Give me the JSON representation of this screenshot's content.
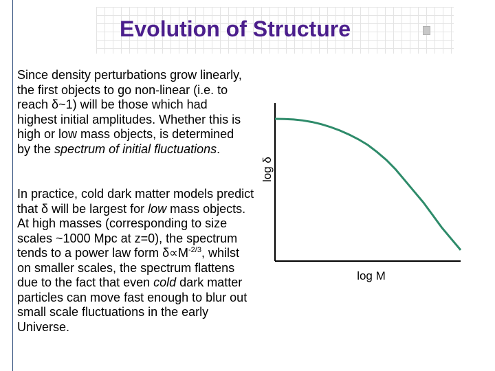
{
  "slide": {
    "title": "Evolution of Structure",
    "para1": {
      "text1": "Since density perturbations grow linearly, the first objects to go non-linear (i.e. to reach ",
      "delta": "δ",
      "text2": "~1) will be those which had highest initial amplitudes. Whether this is high or low mass objects, is determined by the ",
      "emph": "spectrum of initial fluctuations",
      "text3": "."
    },
    "para2": {
      "text1": "In practice, cold dark matter models predict that ",
      "delta": "δ",
      "text2": " will be largest for ",
      "emph_low": "low",
      "text3": " mass objects. At high masses (corresponding to size scales ~1000 Mpc at z=0), the spectrum tends to a power law form ",
      "formula": "δ∝M",
      "exponent": "-2/3",
      "text4": ", whilst on smaller scales, the spectrum flattens due to the fact that even ",
      "emph_cold": "cold",
      "text5": " dark matter particles can move fast enough to blur out small scale fluctuations in the early Universe."
    }
  },
  "chart_data": {
    "type": "line",
    "xlabel": "log M",
    "ylabel": "log δ",
    "series": [
      {
        "x": [
          0,
          0.05,
          0.1,
          0.15,
          0.2,
          0.25,
          0.3,
          0.35,
          0.4,
          0.45,
          0.5,
          0.55,
          0.6,
          0.65,
          0.7,
          0.75,
          0.8,
          0.85,
          0.9,
          0.95,
          1.0
        ],
        "y": [
          0.9,
          0.899,
          0.896,
          0.89,
          0.88,
          0.866,
          0.848,
          0.826,
          0.8,
          0.77,
          0.735,
          0.69,
          0.64,
          0.58,
          0.51,
          0.44,
          0.37,
          0.29,
          0.21,
          0.14,
          0.07
        ]
      }
    ],
    "xlim": [
      0,
      1
    ],
    "ylim": [
      0,
      1
    ],
    "ticks": false,
    "grid": false,
    "colors": {
      "curve": "#2e8b6a",
      "axes": "#000000"
    }
  }
}
